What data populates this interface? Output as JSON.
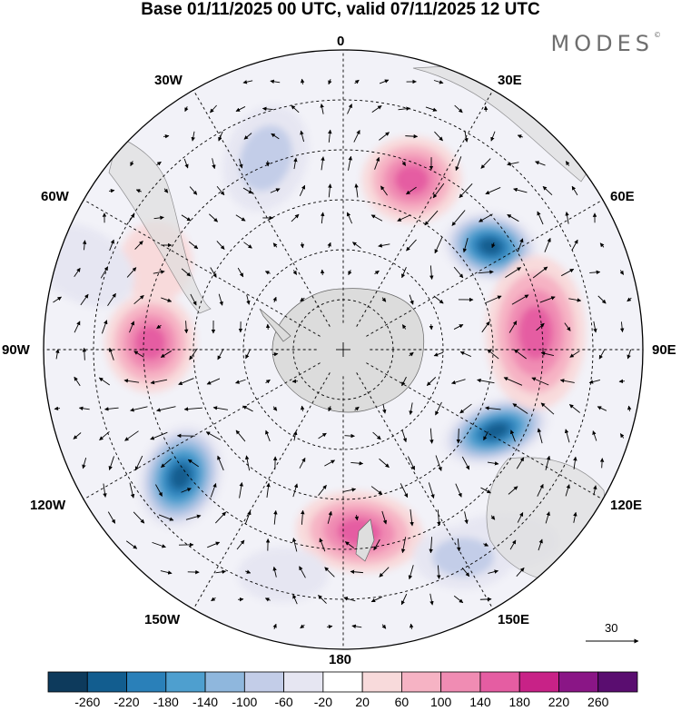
{
  "title": "Base 01/11/2025 00 UTC, valid 07/11/2025 12 UTC",
  "logo": {
    "text": "MODES",
    "mark": "©"
  },
  "longitude_labels": {
    "top": "0",
    "bottom": "180",
    "left": "90W",
    "right": "90E",
    "lon_30w": "30W",
    "lon_30e": "30E",
    "lon_60w": "60W",
    "lon_60e": "60E",
    "lon_120w": "120W",
    "lon_120e": "120E",
    "lon_150w": "150W",
    "lon_150e": "150E"
  },
  "reference_vector": {
    "label": "30"
  },
  "colorbar": {
    "ticks": [
      "-260",
      "-220",
      "-180",
      "-140",
      "-100",
      "-60",
      "-20",
      "20",
      "60",
      "100",
      "140",
      "180",
      "220",
      "260"
    ],
    "colors": [
      "#0d3a5c",
      "#125d8f",
      "#2a80b9",
      "#4e9fcf",
      "#8fb7dd",
      "#c3cde8",
      "#e6e6f2",
      "#ffffff",
      "#f8dadb",
      "#f6b3c4",
      "#f08cb3",
      "#e55da2",
      "#c82287",
      "#8a1686",
      "#5a0d70"
    ]
  },
  "anomaly_centers": [
    {
      "lon": 55,
      "colat": 54,
      "value": -240,
      "rx": 52,
      "ry": 38,
      "rot": 10
    },
    {
      "lon": 118,
      "colat": 52,
      "value": -230,
      "rx": 60,
      "ry": 34,
      "rot": -18
    },
    {
      "lon": -128,
      "colat": 62,
      "value": -250,
      "rx": 45,
      "ry": 58,
      "rot": 20
    },
    {
      "lon": 22,
      "colat": 55,
      "value": 170,
      "rx": 55,
      "ry": 48,
      "rot": 0
    },
    {
      "lon": 85,
      "colat": 58,
      "value": 160,
      "rx": 55,
      "ry": 85,
      "rot": 0
    },
    {
      "lon": -88,
      "colat": 58,
      "value": 160,
      "rx": 50,
      "ry": 55,
      "rot": 0
    },
    {
      "lon": 175,
      "colat": 55,
      "value": 170,
      "rx": 70,
      "ry": 45,
      "rot": 5
    },
    {
      "lon": -22,
      "colat": 62,
      "value": -90,
      "rx": 45,
      "ry": 60,
      "rot": 20
    },
    {
      "lon": -65,
      "colat": 62,
      "value": 60,
      "rx": 40,
      "ry": 45,
      "rot": 0
    },
    {
      "lon": -72,
      "colat": 82,
      "value": -60,
      "rx": 60,
      "ry": 40,
      "rot": 30
    },
    {
      "lon": 140,
      "colat": 75,
      "value": -60,
      "rx": 60,
      "ry": 30,
      "rot": 0
    },
    {
      "lon": 150,
      "colat": 72,
      "value": -70,
      "rx": 55,
      "ry": 35,
      "rot": 0
    },
    {
      "lon": -165,
      "colat": 70,
      "value": -40,
      "rx": 50,
      "ry": 30,
      "rot": 0
    }
  ]
}
